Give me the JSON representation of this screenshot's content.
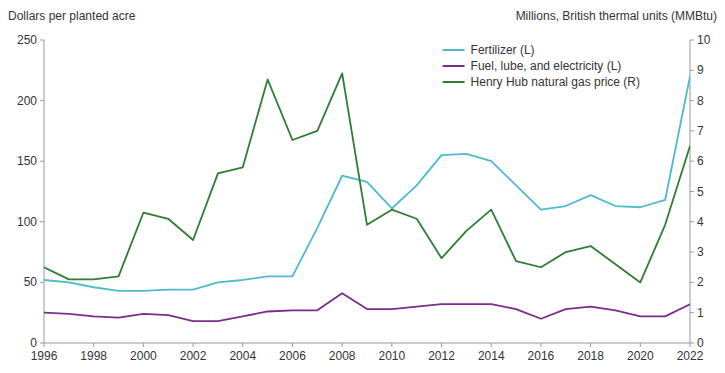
{
  "chart_data": {
    "type": "line",
    "x": [
      1996,
      1997,
      1998,
      1999,
      2000,
      2001,
      2002,
      2003,
      2004,
      2005,
      2006,
      2007,
      2008,
      2009,
      2010,
      2011,
      2012,
      2013,
      2014,
      2015,
      2016,
      2017,
      2018,
      2019,
      2020,
      2021,
      2022
    ],
    "series": [
      {
        "name": "Fertilizer (L)",
        "color": "#4DBBCC",
        "values": [
          52,
          50,
          46,
          43,
          43,
          44,
          44,
          50,
          52,
          55,
          55,
          95,
          138,
          133,
          111,
          130,
          155,
          156,
          150,
          130,
          110,
          113,
          122,
          113,
          112,
          118,
          220
        ]
      },
      {
        "name": "Fuel, lube, and electricity (L)",
        "color": "#7B2D8B",
        "values": [
          25,
          24,
          22,
          21,
          24,
          23,
          18,
          18,
          22,
          26,
          27,
          27,
          41,
          28,
          28,
          30,
          32,
          32,
          32,
          28,
          20,
          28,
          30,
          27,
          22,
          22,
          32
        ]
      },
      {
        "name": "Henry Hub natural gas price (R)",
        "color": "#2E7D32",
        "axis": "y2",
        "values": [
          2.5,
          2.1,
          2.1,
          2.2,
          4.3,
          4.1,
          3.4,
          5.6,
          5.8,
          8.7,
          6.7,
          7.0,
          8.9,
          3.9,
          4.4,
          4.1,
          2.8,
          3.7,
          4.4,
          2.7,
          2.5,
          3.0,
          3.2,
          2.6,
          2.0,
          3.9,
          6.5
        ]
      }
    ],
    "xlim": [
      1996,
      2022
    ],
    "xticks": [
      1996,
      1998,
      2000,
      2002,
      2004,
      2006,
      2008,
      2010,
      2012,
      2014,
      2016,
      2018,
      2020,
      2022
    ],
    "ylim": [
      0,
      250
    ],
    "yticks": [
      0,
      50,
      100,
      150,
      200,
      250
    ],
    "y2lim": [
      0,
      10
    ],
    "y2ticks": [
      0,
      1,
      2,
      3,
      4,
      5,
      6,
      7,
      8,
      9,
      10
    ],
    "ylabel": "Dollars per planted acre",
    "y2label": "Millions, British thermal units (MMBtu)",
    "legend": "upper right",
    "grid": false
  }
}
